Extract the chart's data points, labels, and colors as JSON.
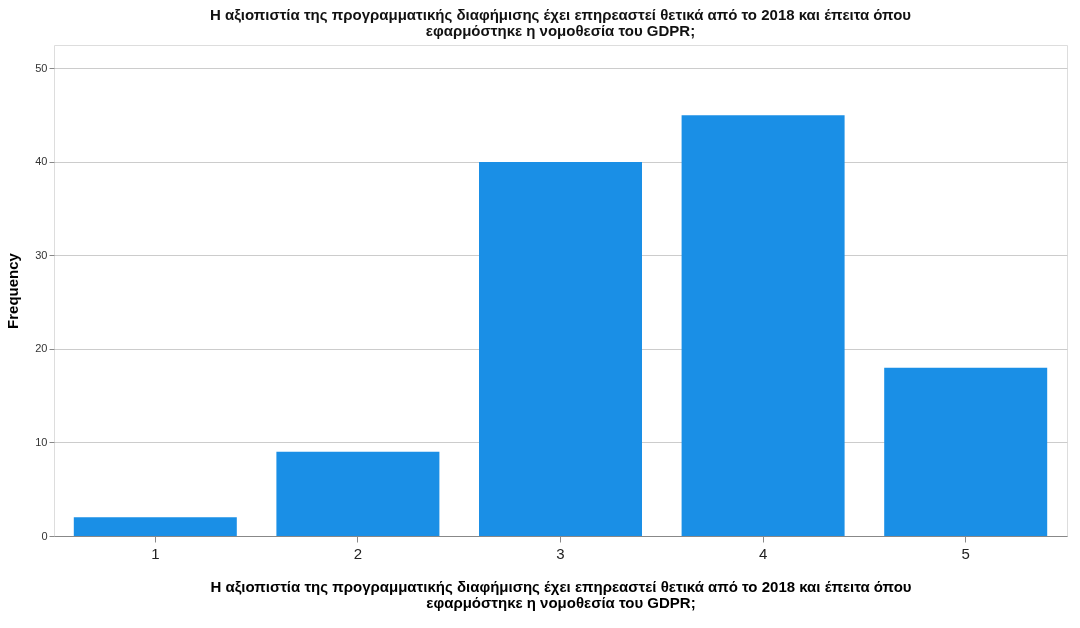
{
  "chart_data": {
    "type": "bar",
    "title": "Η αξιοπιστία της προγραμματικής διαφήμισης έχει επηρεαστεί  θετικά από το 2018 και έπειτα όπου\nεφαρμόστηκε η νομοθεσία του GDPR;",
    "xlabel": "Η αξιοπιστία της προγραμματικής διαφήμισης έχει επηρεαστεί  θετικά από το 2018 και έπειτα όπου\nεφαρμόστηκε η νομοθεσία του GDPR;",
    "ylabel": "Frequency",
    "categories": [
      "1",
      "2",
      "3",
      "4",
      "5"
    ],
    "values": [
      2,
      9,
      40,
      45,
      18
    ],
    "color": "#1a8fe6",
    "ylim": [
      0,
      52.5
    ],
    "yticks": [
      0,
      10,
      20,
      30,
      40,
      50
    ],
    "grid": "y"
  }
}
